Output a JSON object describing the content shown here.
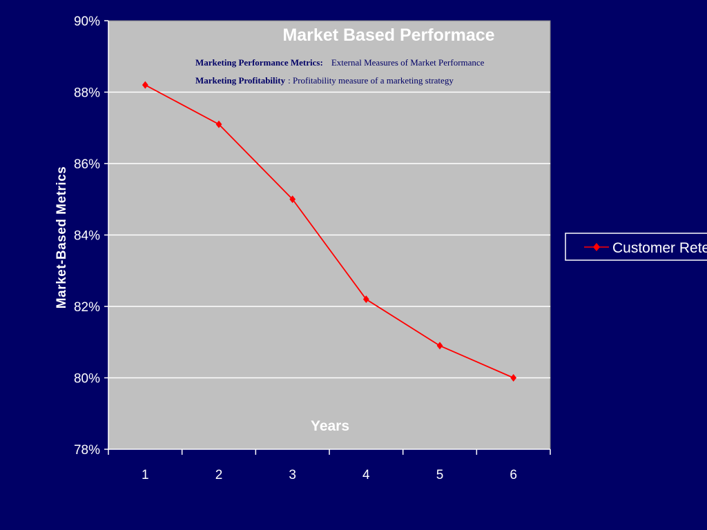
{
  "chart_data": {
    "type": "line",
    "title": "Market Based Performace",
    "xlabel": "Years",
    "ylabel": "Market-Based Metrics",
    "categories": [
      "1",
      "2",
      "3",
      "4",
      "5",
      "6"
    ],
    "ylim": [
      0.78,
      0.9
    ],
    "yticks": [
      "78%",
      "80%",
      "82%",
      "84%",
      "86%",
      "88%",
      "90%"
    ],
    "series": [
      {
        "name": "Customer Retentio",
        "values": [
          0.882,
          0.871,
          0.85,
          0.822,
          0.809,
          0.8
        ],
        "color": "#ff0000",
        "marker": "diamond"
      }
    ],
    "grid": true,
    "legend_position": "right",
    "annotations": [
      {
        "label": "Marketing Performance Metrics:",
        "text": "External Measures of Market Performance"
      },
      {
        "label": "Marketing Profitability",
        "text": ":  Profitability measure of a marketing strategy"
      }
    ]
  },
  "colors": {
    "background": "#000066",
    "plot_area": "#c0c0c0",
    "gridline": "#ffffff",
    "line": "#ff0000",
    "text": "#ffffff",
    "note_text": "#000066"
  }
}
